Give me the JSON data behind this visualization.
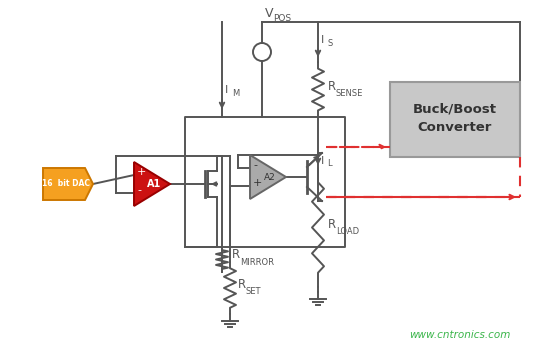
{
  "bg_color": "#ffffff",
  "watermark_text": "www.cntronics.com",
  "watermark_color": "#3ab54a",
  "circuit": {
    "vpos_label": "V",
    "vpos_sub": "POS",
    "im_label": "I",
    "im_sub": "M",
    "is_label": "I",
    "is_sub": "S",
    "il_label": "I",
    "il_sub": "L",
    "rmirror_label": "R",
    "rmirror_sub": "MIRROR",
    "rsense_label": "R",
    "rsense_sub": "SENSE",
    "rset_label": "R",
    "rset_sub": "SET",
    "rload_label": "R",
    "rload_sub": "LOAD",
    "a1_label": "A1",
    "a2_label": "A2",
    "dac_label": "16  bit DAC",
    "buck_boost_line1": "Buck/Boost",
    "buck_boost_line2": "Converter",
    "dac_color": "#f5a020",
    "a1_color": "#cc1111",
    "a2_face_color": "#aaaaaa",
    "gray_box_color": "#c8c8c8",
    "gray_box_edge": "#999999",
    "dashed_color": "#e03030",
    "line_color": "#555555",
    "line_width": 1.4
  }
}
